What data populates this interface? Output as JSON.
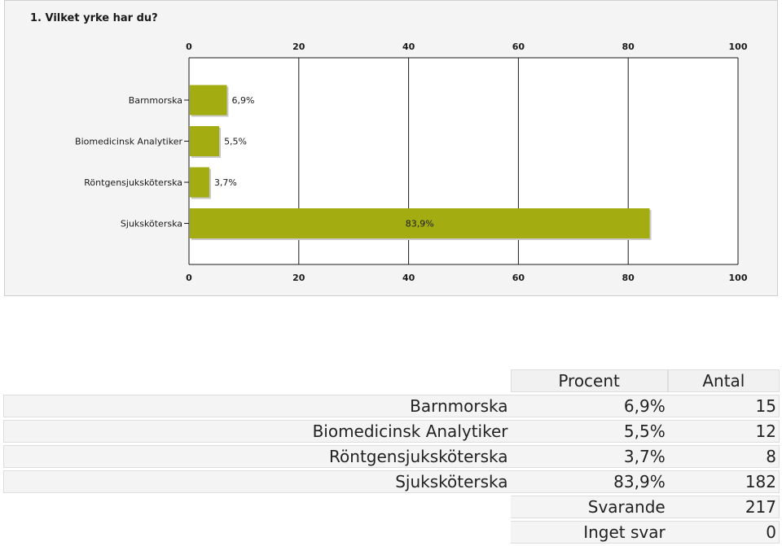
{
  "chart_data": {
    "type": "bar",
    "orientation": "horizontal",
    "title": "1. Vilket yrke har du?",
    "categories": [
      "Barnmorska",
      "Biomedicinsk Analytiker",
      "Röntgensjuksköterska",
      "Sjuksköterska"
    ],
    "values": [
      6.9,
      5.5,
      3.7,
      83.9
    ],
    "value_labels": [
      "6,9%",
      "5,5%",
      "3,7%",
      "83,9%"
    ],
    "xlim": [
      0,
      100
    ],
    "xticks": [
      0,
      20,
      40,
      60,
      80,
      100
    ],
    "xticks_top_and_bottom": true,
    "grid": true,
    "bar_color": "#a3ac10"
  },
  "table": {
    "headers": [
      "Procent",
      "Antal"
    ],
    "rows": [
      {
        "label": "Barnmorska",
        "percent": "6,9%",
        "count": "15"
      },
      {
        "label": "Biomedicinsk Analytiker",
        "percent": "5,5%",
        "count": "12"
      },
      {
        "label": "Röntgensjuksköterska",
        "percent": "3,7%",
        "count": "8"
      },
      {
        "label": "Sjuksköterska",
        "percent": "83,9%",
        "count": "182"
      }
    ],
    "answered_label": "Svarande",
    "answered_count": "217",
    "no_answer_label": "Inget svar",
    "no_answer_count": "0"
  }
}
